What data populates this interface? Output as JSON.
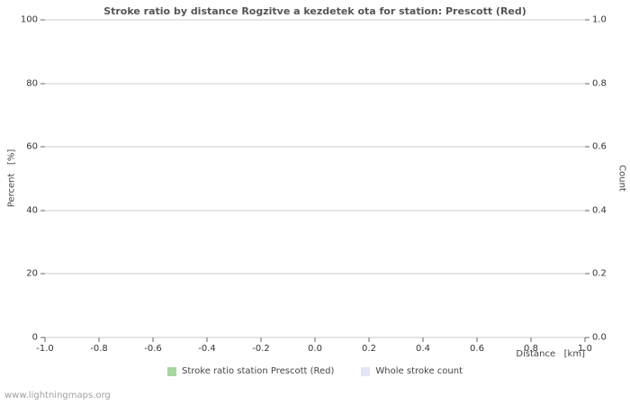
{
  "chart_data": {
    "type": "line",
    "title": "Stroke ratio by distance Rogzitve a kezdetek ota for station: Prescott (Red)",
    "xlabel": "Distance   [km]",
    "ylabel_left": "Percent   [%]",
    "ylabel_right": "Count",
    "xlim": [
      -1.0,
      1.0
    ],
    "ylim_left": [
      0,
      100
    ],
    "ylim_right": [
      0.0,
      1.0
    ],
    "x_tick_labels": [
      "-1.0",
      "-0.8",
      "-0.6",
      "-0.4",
      "-0.2",
      "0.0",
      "0.2",
      "0.4",
      "0.6",
      "0.8",
      "1.0"
    ],
    "y_left_tick_labels": [
      "0",
      "20",
      "40",
      "60",
      "80",
      "100"
    ],
    "y_right_tick_labels": [
      "0.0",
      "0.2",
      "0.4",
      "0.6",
      "0.8",
      "1.0"
    ],
    "grid": true,
    "legend_position": "bottom",
    "series": [
      {
        "name": "Stroke ratio station Prescott (Red)",
        "color": "#a7d7a0",
        "values": []
      },
      {
        "name": "Whole stroke count",
        "color": "#e4e4f8",
        "values": []
      }
    ]
  },
  "colors": {
    "gridline": "#cdcdcd",
    "tick": "#666666",
    "title": "#555555",
    "watermark": "#a0a0a0"
  },
  "watermark": "www.lightningmaps.org"
}
